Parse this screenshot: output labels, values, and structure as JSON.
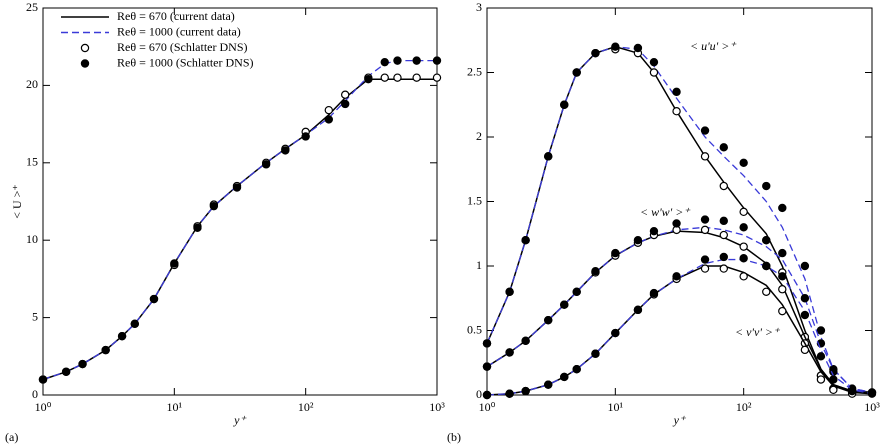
{
  "chart_data": [
    {
      "type": "line",
      "panel_label": "(a)",
      "xlabel": "y⁺",
      "ylabel": "< U >⁺",
      "log_x": true,
      "legend": "upper left",
      "xlim": [
        1,
        1000
      ],
      "ylim": [
        0,
        25
      ],
      "xticks": [
        {
          "value": 1,
          "label": "10⁰"
        },
        {
          "value": 10,
          "label": "10¹"
        },
        {
          "value": 100,
          "label": "10²"
        },
        {
          "value": 1000,
          "label": "10³"
        }
      ],
      "yticks": [
        0,
        5,
        10,
        15,
        20,
        25
      ],
      "x": [
        1,
        1.5,
        2,
        3,
        4,
        5,
        7,
        10,
        15,
        20,
        30,
        50,
        70,
        100,
        150,
        200,
        300,
        400,
        500,
        700,
        1000
      ],
      "series": [
        {
          "name": "Reθ = 670 (current data)",
          "style": "solid",
          "color": "#000000",
          "values": [
            1,
            1.5,
            2,
            2.9,
            3.8,
            4.6,
            6.2,
            8.5,
            10.9,
            12.2,
            13.5,
            15,
            15.9,
            16.8,
            18.1,
            19.2,
            20.4,
            20.4,
            20.4,
            20.4,
            20.4
          ]
        },
        {
          "name": "Reθ = 1000 (current data)",
          "style": "dashed",
          "color": "#3a3ad8",
          "values": [
            1,
            1.5,
            2,
            2.9,
            3.8,
            4.6,
            6.2,
            8.5,
            10.9,
            12.2,
            13.5,
            15,
            15.9,
            16.8,
            17.9,
            19,
            20.6,
            21.4,
            21.6,
            21.6,
            21.6
          ]
        },
        {
          "name": "Reθ = 670 (Schlatter DNS)",
          "style": "open",
          "color": "#000000",
          "values": [
            1,
            1.5,
            2,
            2.9,
            3.8,
            4.6,
            6.2,
            8.4,
            10.9,
            12.3,
            13.5,
            15,
            15.9,
            17,
            18.4,
            19.4,
            20.5,
            20.5,
            20.5,
            20.5,
            20.5
          ]
        },
        {
          "name": "Reθ = 1000 (Schlatter DNS)",
          "style": "filled",
          "color": "#000000",
          "values": [
            1,
            1.5,
            2,
            2.9,
            3.8,
            4.6,
            6.2,
            8.5,
            10.8,
            12.2,
            13.4,
            14.9,
            15.8,
            16.7,
            17.8,
            18.8,
            20.4,
            21.5,
            21.6,
            21.6,
            21.6
          ]
        }
      ]
    },
    {
      "type": "line",
      "panel_label": "(b)",
      "xlabel": "y⁺",
      "log_x": true,
      "annotations": [
        "< u'u' >⁺",
        "< w'w' >⁺",
        "< v'v' >⁺"
      ],
      "xlim": [
        1,
        1000
      ],
      "ylim": [
        0,
        3
      ],
      "xticks": [
        {
          "value": 1,
          "label": "10⁰"
        },
        {
          "value": 10,
          "label": "10¹"
        },
        {
          "value": 100,
          "label": "10²"
        },
        {
          "value": 1000,
          "label": "10³"
        }
      ],
      "yticks": [
        0,
        0.5,
        1,
        1.5,
        2,
        2.5,
        3
      ],
      "x": [
        1,
        1.5,
        2,
        3,
        4,
        5,
        7,
        10,
        15,
        20,
        30,
        50,
        70,
        100,
        150,
        200,
        300,
        400,
        500,
        700,
        1000
      ],
      "series": [
        {
          "style": "solid",
          "color": "#000000",
          "values": [
            0.4,
            0.8,
            1.2,
            1.85,
            2.25,
            2.5,
            2.65,
            2.7,
            2.65,
            2.5,
            2.2,
            1.85,
            1.65,
            1.45,
            1.25,
            1.0,
            0.5,
            0.2,
            0.08,
            0.03,
            0.02
          ]
        },
        {
          "style": "dashed",
          "color": "#3a3ad8",
          "values": [
            0.4,
            0.8,
            1.2,
            1.85,
            2.25,
            2.5,
            2.65,
            2.7,
            2.68,
            2.55,
            2.3,
            2.0,
            1.85,
            1.7,
            1.5,
            1.3,
            0.9,
            0.45,
            0.2,
            0.05,
            0.02
          ]
        },
        {
          "style": "open",
          "color": "#000000",
          "values": [
            0.4,
            0.8,
            1.2,
            1.85,
            2.25,
            2.5,
            2.65,
            2.68,
            2.65,
            2.5,
            2.2,
            1.85,
            1.62,
            1.42,
            1.2,
            0.95,
            0.45,
            0.15,
            0.05,
            0.02,
            null
          ]
        },
        {
          "style": "filled",
          "color": "#000000",
          "values": [
            0.4,
            0.8,
            1.2,
            1.85,
            2.25,
            2.5,
            2.65,
            2.7,
            2.69,
            2.58,
            2.35,
            2.05,
            1.92,
            1.8,
            1.62,
            1.45,
            1.0,
            0.5,
            0.2,
            0.05,
            0.02
          ]
        },
        {
          "style": "solid",
          "color": "#000000",
          "values": [
            0.22,
            0.33,
            0.42,
            0.58,
            0.7,
            0.8,
            0.95,
            1.08,
            1.18,
            1.23,
            1.27,
            1.26,
            1.22,
            1.15,
            1.02,
            0.85,
            0.45,
            0.2,
            0.08,
            0.03,
            0.02
          ]
        },
        {
          "style": "dashed",
          "color": "#3a3ad8",
          "values": [
            0.22,
            0.33,
            0.42,
            0.58,
            0.7,
            0.8,
            0.95,
            1.08,
            1.18,
            1.23,
            1.28,
            1.3,
            1.28,
            1.24,
            1.15,
            1.05,
            0.75,
            0.4,
            0.2,
            0.05,
            0.02
          ]
        },
        {
          "style": "open",
          "color": "#000000",
          "values": [
            0.22,
            0.33,
            0.42,
            0.58,
            0.7,
            0.8,
            0.95,
            1.08,
            1.18,
            1.24,
            1.28,
            1.28,
            1.24,
            1.15,
            1.0,
            0.82,
            0.4,
            0.15,
            0.05,
            0.02,
            null
          ]
        },
        {
          "style": "filled",
          "color": "#000000",
          "values": [
            0.22,
            0.33,
            0.42,
            0.58,
            0.7,
            0.8,
            0.96,
            1.1,
            1.2,
            1.27,
            1.33,
            1.36,
            1.35,
            1.3,
            1.2,
            1.1,
            0.75,
            0.4,
            0.18,
            0.04,
            0.02
          ]
        },
        {
          "style": "solid",
          "color": "#000000",
          "values": [
            0,
            0.01,
            0.03,
            0.08,
            0.14,
            0.2,
            0.32,
            0.48,
            0.66,
            0.78,
            0.9,
            1.0,
            1.0,
            0.95,
            0.85,
            0.7,
            0.4,
            0.18,
            0.07,
            0.02,
            0.01
          ]
        },
        {
          "style": "dashed",
          "color": "#3a3ad8",
          "values": [
            0,
            0.01,
            0.03,
            0.08,
            0.14,
            0.2,
            0.32,
            0.48,
            0.66,
            0.78,
            0.9,
            1.02,
            1.05,
            1.05,
            1.0,
            0.92,
            0.65,
            0.35,
            0.15,
            0.04,
            0.01
          ]
        },
        {
          "style": "open",
          "color": "#000000",
          "values": [
            0,
            0.01,
            0.03,
            0.08,
            0.14,
            0.2,
            0.32,
            0.48,
            0.66,
            0.78,
            0.9,
            0.98,
            0.98,
            0.92,
            0.8,
            0.65,
            0.35,
            0.12,
            0.04,
            0.01,
            null
          ]
        },
        {
          "style": "filled",
          "color": "#000000",
          "values": [
            0,
            0.01,
            0.03,
            0.08,
            0.14,
            0.2,
            0.32,
            0.48,
            0.66,
            0.79,
            0.92,
            1.05,
            1.07,
            1.06,
            1.0,
            0.92,
            0.62,
            0.3,
            0.12,
            0.03,
            0.01
          ]
        }
      ]
    }
  ]
}
